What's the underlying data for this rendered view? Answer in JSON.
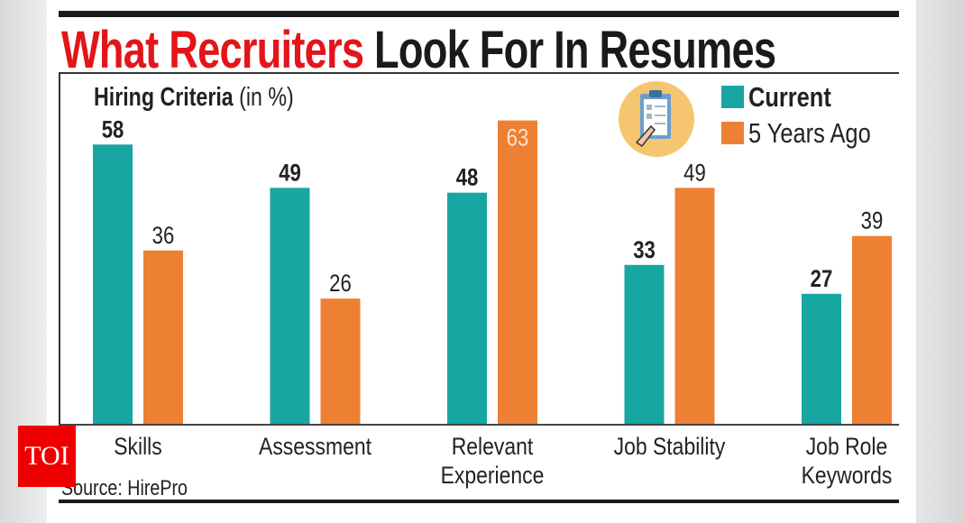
{
  "chart_data": {
    "type": "bar",
    "title": "What Recruiters Look For In Resumes",
    "title_parts": {
      "highlight": "What Recruiters",
      "rest": "Look For In Resumes"
    },
    "subtitle": {
      "bold": "Hiring Criteria",
      "unit": "(in %)"
    },
    "categories": [
      "Skills",
      "Assessment",
      "Relevant Experience",
      "Job Stability",
      "Job Role Keywords"
    ],
    "category_lines": [
      [
        "Skills"
      ],
      [
        "Assessment"
      ],
      [
        "Relevant",
        "Experience"
      ],
      [
        "Job Stability"
      ],
      [
        "Job Role",
        "Keywords"
      ]
    ],
    "series": [
      {
        "name": "Current",
        "color": "#17a6a2",
        "values": [
          58,
          49,
          48,
          33,
          27
        ]
      },
      {
        "name": "5 Years Ago",
        "color": "#ee8033",
        "values": [
          36,
          26,
          63,
          49,
          39
        ]
      }
    ],
    "ylim": [
      0,
      63
    ],
    "grid": false,
    "legend_position": "top-right",
    "source": "Source: HirePro",
    "title_color": "#e3151a"
  },
  "logo": "TOI",
  "legend_icon": "clipboard-icon"
}
